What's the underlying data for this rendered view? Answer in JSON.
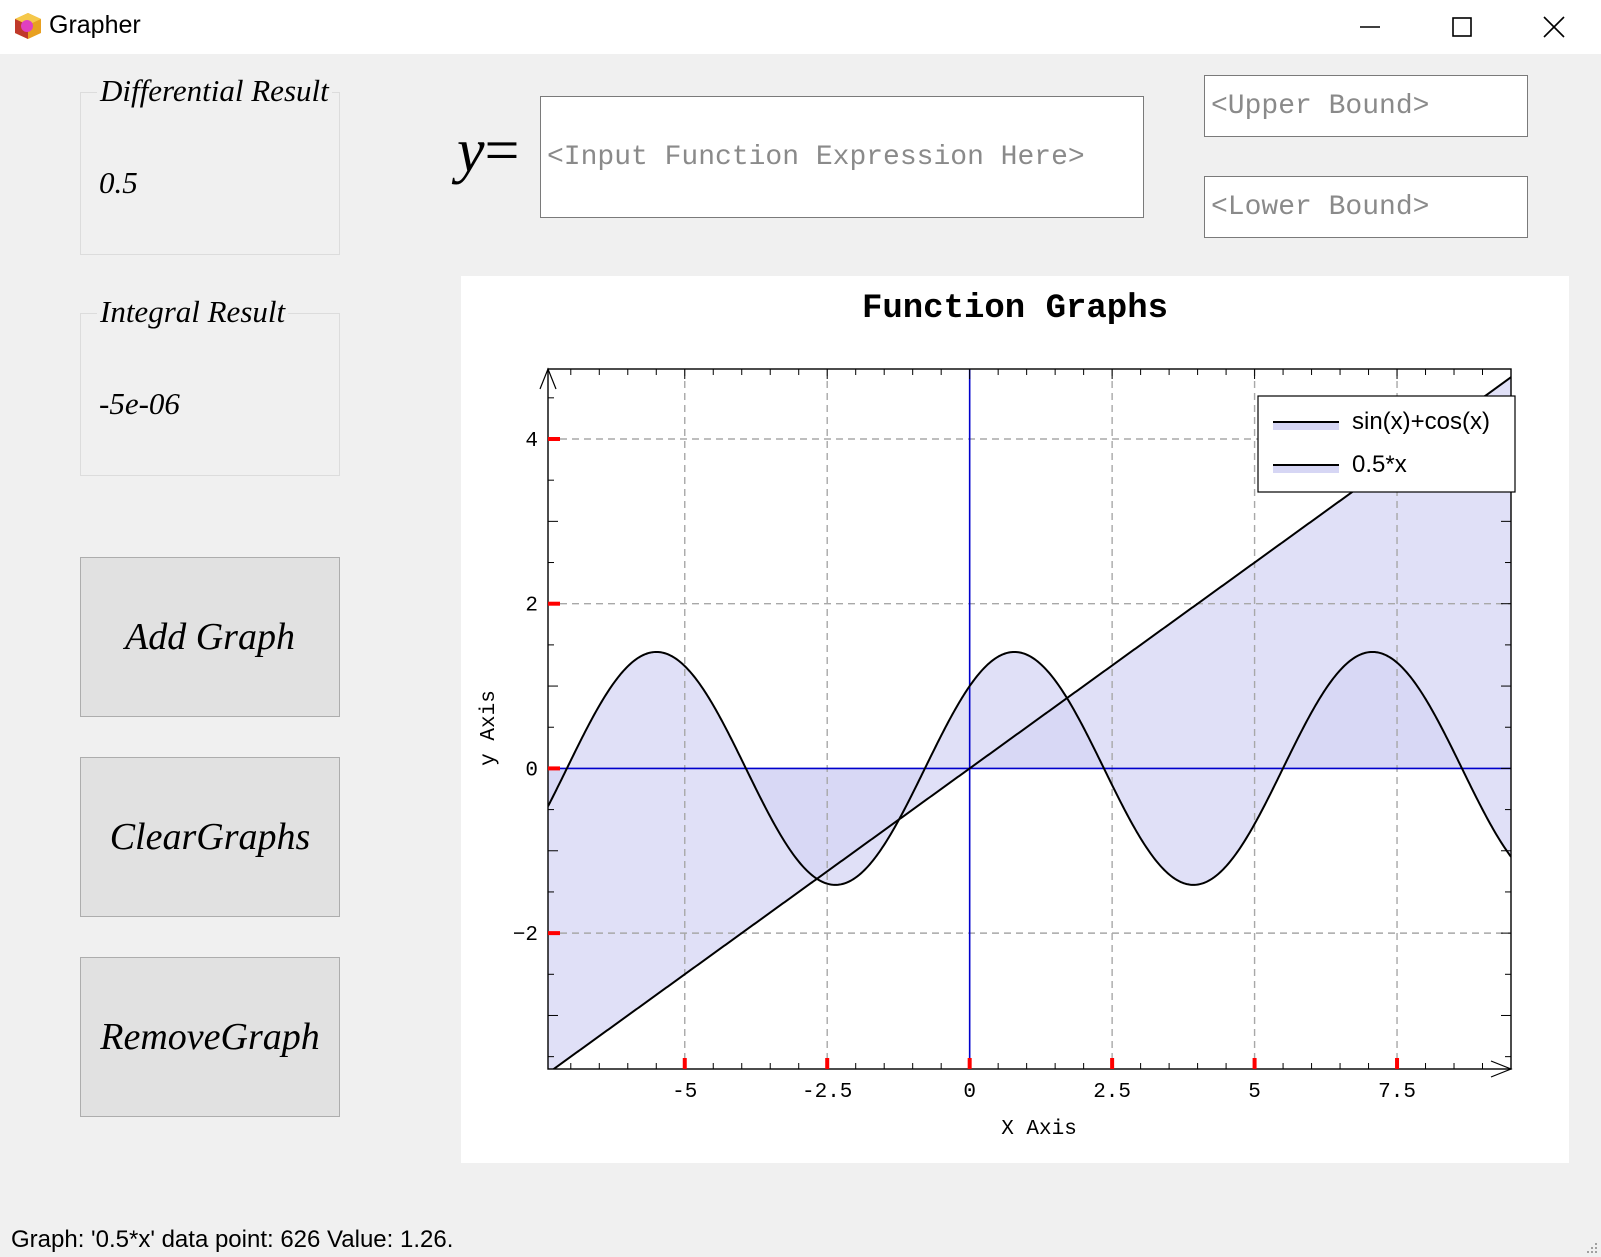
{
  "window": {
    "title": "Grapher",
    "minimize_icon": "minimize-icon",
    "maximize_icon": "maximize-icon",
    "close_icon": "close-icon"
  },
  "results": {
    "differential": {
      "title": "Differential Result",
      "value": "0.5"
    },
    "integral": {
      "title": "Integral Result",
      "value": "-5e-06"
    }
  },
  "buttons": {
    "add": "Add Graph",
    "clear": "ClearGraphs",
    "remove": "RemoveGraph"
  },
  "input": {
    "y_prefix": "y",
    "y_equals": "=",
    "function_placeholder": "<Input Function Expression Here>",
    "upper_placeholder": "<Upper Bound>",
    "lower_placeholder": "<Lower Bound>"
  },
  "chart_data": {
    "type": "line",
    "title": "Function Graphs",
    "xlabel": "X Axis",
    "ylabel": "y Axis",
    "xlim": [
      -7.4,
      9.5
    ],
    "ylim": [
      -3.65,
      4.85
    ],
    "xticks": [
      -5,
      -2.5,
      0,
      2.5,
      5,
      7.5
    ],
    "xtick_labels": [
      "-5",
      "-2.5",
      "0",
      "2.5",
      "5",
      "7.5"
    ],
    "yticks": [
      -2,
      0,
      2,
      4
    ],
    "ytick_labels": [
      "−2",
      "0",
      "2",
      "4"
    ],
    "grid": true,
    "legend_position": "top-right",
    "series": [
      {
        "name": "sin(x)+cos(x)",
        "expression": "sin(x)+cos(x)",
        "line_color": "#000000",
        "fill_color": "#d6d6f4"
      },
      {
        "name": "0.5*x",
        "expression": "0.5*x",
        "line_color": "#000000",
        "fill_color": "#d6d6f4"
      }
    ],
    "axis_line_color": "#0000cc",
    "tick_marker_color": "#ff0000"
  },
  "status": {
    "text": "Graph: '0.5*x' data point: 626 Value: 1.26."
  }
}
